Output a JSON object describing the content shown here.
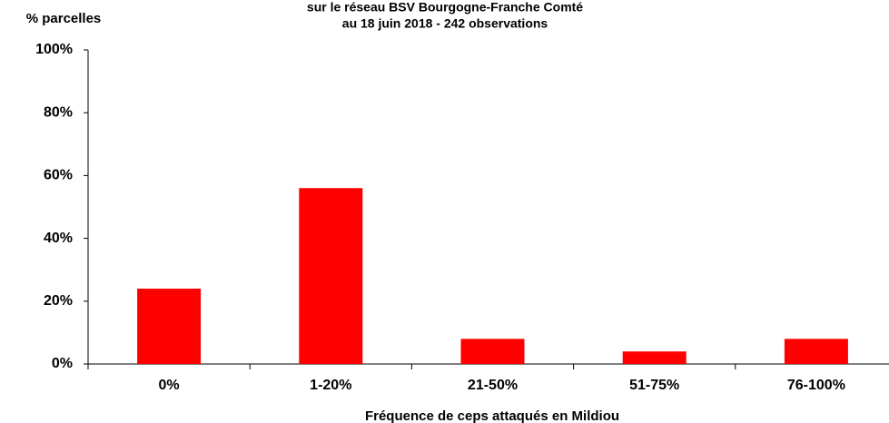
{
  "chart_data": {
    "type": "bar",
    "title": "sur le réseau BSV Bourgogne-Franche Comté",
    "subtitle": "au 18 juin 2018 - 242 observations",
    "y_label": "% parcelles",
    "x_label": "Fréquence de ceps attaqués en Mildiou",
    "categories": [
      "0%",
      "1-20%",
      "21-50%",
      "51-75%",
      "76-100%"
    ],
    "values": [
      24,
      56,
      8,
      4,
      8
    ],
    "color": "#ff0000",
    "ylim": [
      0,
      100
    ],
    "yticks": [
      {
        "value": 0,
        "label": "0%"
      },
      {
        "value": 20,
        "label": "20%"
      },
      {
        "value": 40,
        "label": "40%"
      },
      {
        "value": 60,
        "label": "60%"
      },
      {
        "value": 80,
        "label": "80%"
      },
      {
        "value": 100,
        "label": "100%"
      }
    ],
    "grid": false
  }
}
